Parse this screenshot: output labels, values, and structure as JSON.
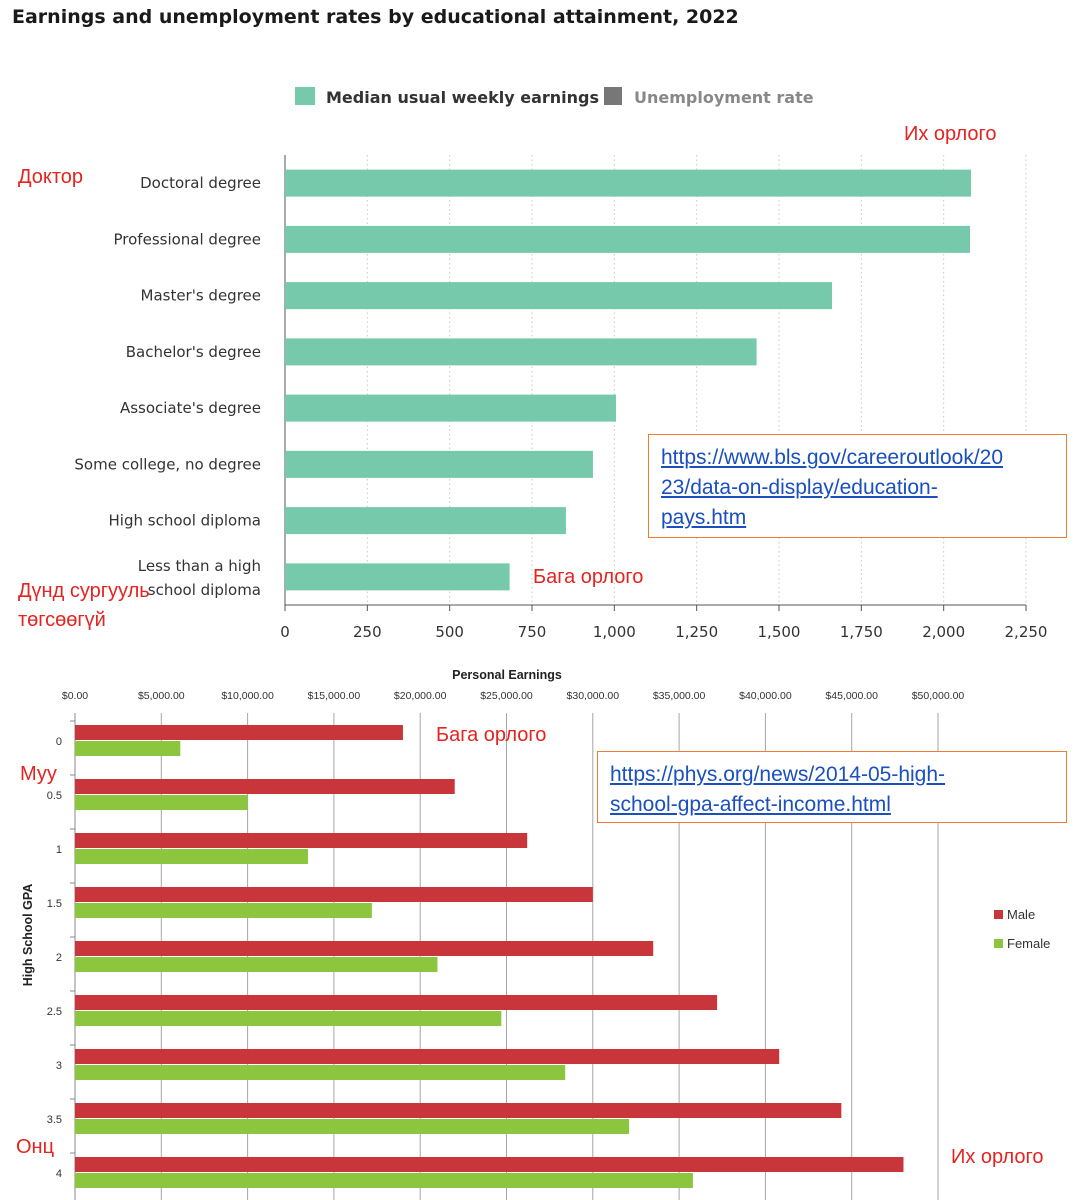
{
  "title": "Earnings and unemployment rates by educational attainment, 2022",
  "chart_data": [
    {
      "type": "bar",
      "orientation": "horizontal",
      "categories": [
        "Doctoral degree",
        "Professional degree",
        "Master's degree",
        "Bachelor's degree",
        "Associate's degree",
        "Some college, no degree",
        "High school diploma",
        "Less than a high school diploma"
      ],
      "series": [
        {
          "name": "Median usual weekly earnings",
          "values": [
            2083,
            2080,
            1661,
            1432,
            1005,
            935,
            853,
            682
          ],
          "color": "#77c9ab"
        }
      ],
      "legend": [
        {
          "label": "Median usual weekly earnings",
          "color": "#77c9ab"
        },
        {
          "label": "Unemployment rate",
          "color": "#777777"
        }
      ],
      "xticks": [
        "0",
        "250",
        "500",
        "750",
        "1,000",
        "1,250",
        "1,500",
        "1,750",
        "2,000",
        "2,250"
      ],
      "xlim": [
        0,
        2250
      ],
      "grid": "vertical dotted",
      "legend_position": "top-center"
    },
    {
      "type": "bar",
      "orientation": "horizontal",
      "title": "Personal Earnings",
      "ylabel": "High School GPA",
      "categories": [
        "0",
        "0.5",
        "1",
        "1.5",
        "2",
        "2.5",
        "3",
        "3.5",
        "4"
      ],
      "series": [
        {
          "name": "Male",
          "values": [
            19000,
            22000,
            26200,
            30000,
            33500,
            37200,
            40800,
            44400,
            48000
          ],
          "color": "#c8353a"
        },
        {
          "name": "Female",
          "values": [
            6100,
            10000,
            13500,
            17200,
            21000,
            24700,
            28400,
            32100,
            35800
          ],
          "color": "#8cc63e"
        }
      ],
      "xticks": [
        "$0.00",
        "$5,000.00",
        "$10,000.00",
        "$15,000.00",
        "$20,000.00",
        "$25,000.00",
        "$30,000.00",
        "$35,000.00",
        "$40,000.00",
        "$45,000.00",
        "$50,000.00"
      ],
      "xlim": [
        0,
        50000
      ],
      "grid": "vertical",
      "legend_position": "right",
      "axis_position": "top"
    }
  ],
  "annotations": {
    "chart1_high": "Их орлого",
    "chart1_doctor": "Доктор",
    "chart1_low": "Бага орлого",
    "chart1_no_hs_1": "Дүнд сургууль",
    "chart1_no_hs_2": "төгсөөгүй",
    "chart2_low": "Бага орлого",
    "chart2_bad": "Муу",
    "chart2_excellent": "Онц",
    "chart2_high": "Их орлого"
  },
  "links": {
    "bls": [
      "https://www.bls.gov/careeroutlook/20",
      "23/data-on-display/education-",
      "pays.htm"
    ],
    "phys": [
      "https://phys.org/news/2014-05-high-",
      "school-gpa-affect-income.html"
    ]
  }
}
